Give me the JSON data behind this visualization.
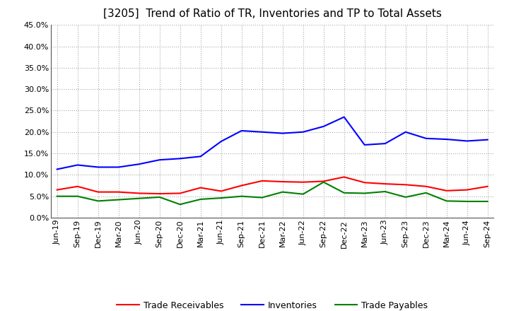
{
  "title": "[3205]  Trend of Ratio of TR, Inventories and TP to Total Assets",
  "ylim": [
    0.0,
    0.45
  ],
  "yticks": [
    0.0,
    0.05,
    0.1,
    0.15,
    0.2,
    0.25,
    0.3,
    0.35,
    0.4,
    0.45
  ],
  "labels": [
    "Jun-19",
    "Sep-19",
    "Dec-19",
    "Mar-20",
    "Jun-20",
    "Sep-20",
    "Dec-20",
    "Mar-21",
    "Jun-21",
    "Sep-21",
    "Dec-21",
    "Mar-22",
    "Jun-22",
    "Sep-22",
    "Dec-22",
    "Mar-23",
    "Jun-23",
    "Sep-23",
    "Dec-23",
    "Mar-24",
    "Jun-24",
    "Sep-24"
  ],
  "trade_receivables": [
    0.065,
    0.073,
    0.06,
    0.06,
    0.057,
    0.056,
    0.057,
    0.07,
    0.062,
    0.075,
    0.086,
    0.084,
    0.083,
    0.085,
    0.095,
    0.082,
    0.079,
    0.077,
    0.073,
    0.063,
    0.065,
    0.073
  ],
  "inventories": [
    0.113,
    0.123,
    0.118,
    0.118,
    0.125,
    0.135,
    0.138,
    0.143,
    0.178,
    0.203,
    0.2,
    0.197,
    0.2,
    0.213,
    0.235,
    0.17,
    0.173,
    0.2,
    0.185,
    0.183,
    0.179,
    0.182
  ],
  "trade_payables": [
    0.05,
    0.05,
    0.039,
    0.042,
    0.045,
    0.048,
    0.031,
    0.043,
    0.046,
    0.05,
    0.047,
    0.06,
    0.055,
    0.083,
    0.058,
    0.057,
    0.061,
    0.048,
    0.058,
    0.039,
    0.038,
    0.038
  ],
  "color_tr": "#FF0000",
  "color_inv": "#0000FF",
  "color_tp": "#008000",
  "legend_tr": "Trade Receivables",
  "legend_inv": "Inventories",
  "legend_tp": "Trade Payables",
  "bg_color": "#FFFFFF",
  "plot_bg_color": "#FFFFFF",
  "grid_color": "#AAAAAA",
  "title_fontsize": 11,
  "tick_fontsize": 8,
  "legend_fontsize": 9
}
